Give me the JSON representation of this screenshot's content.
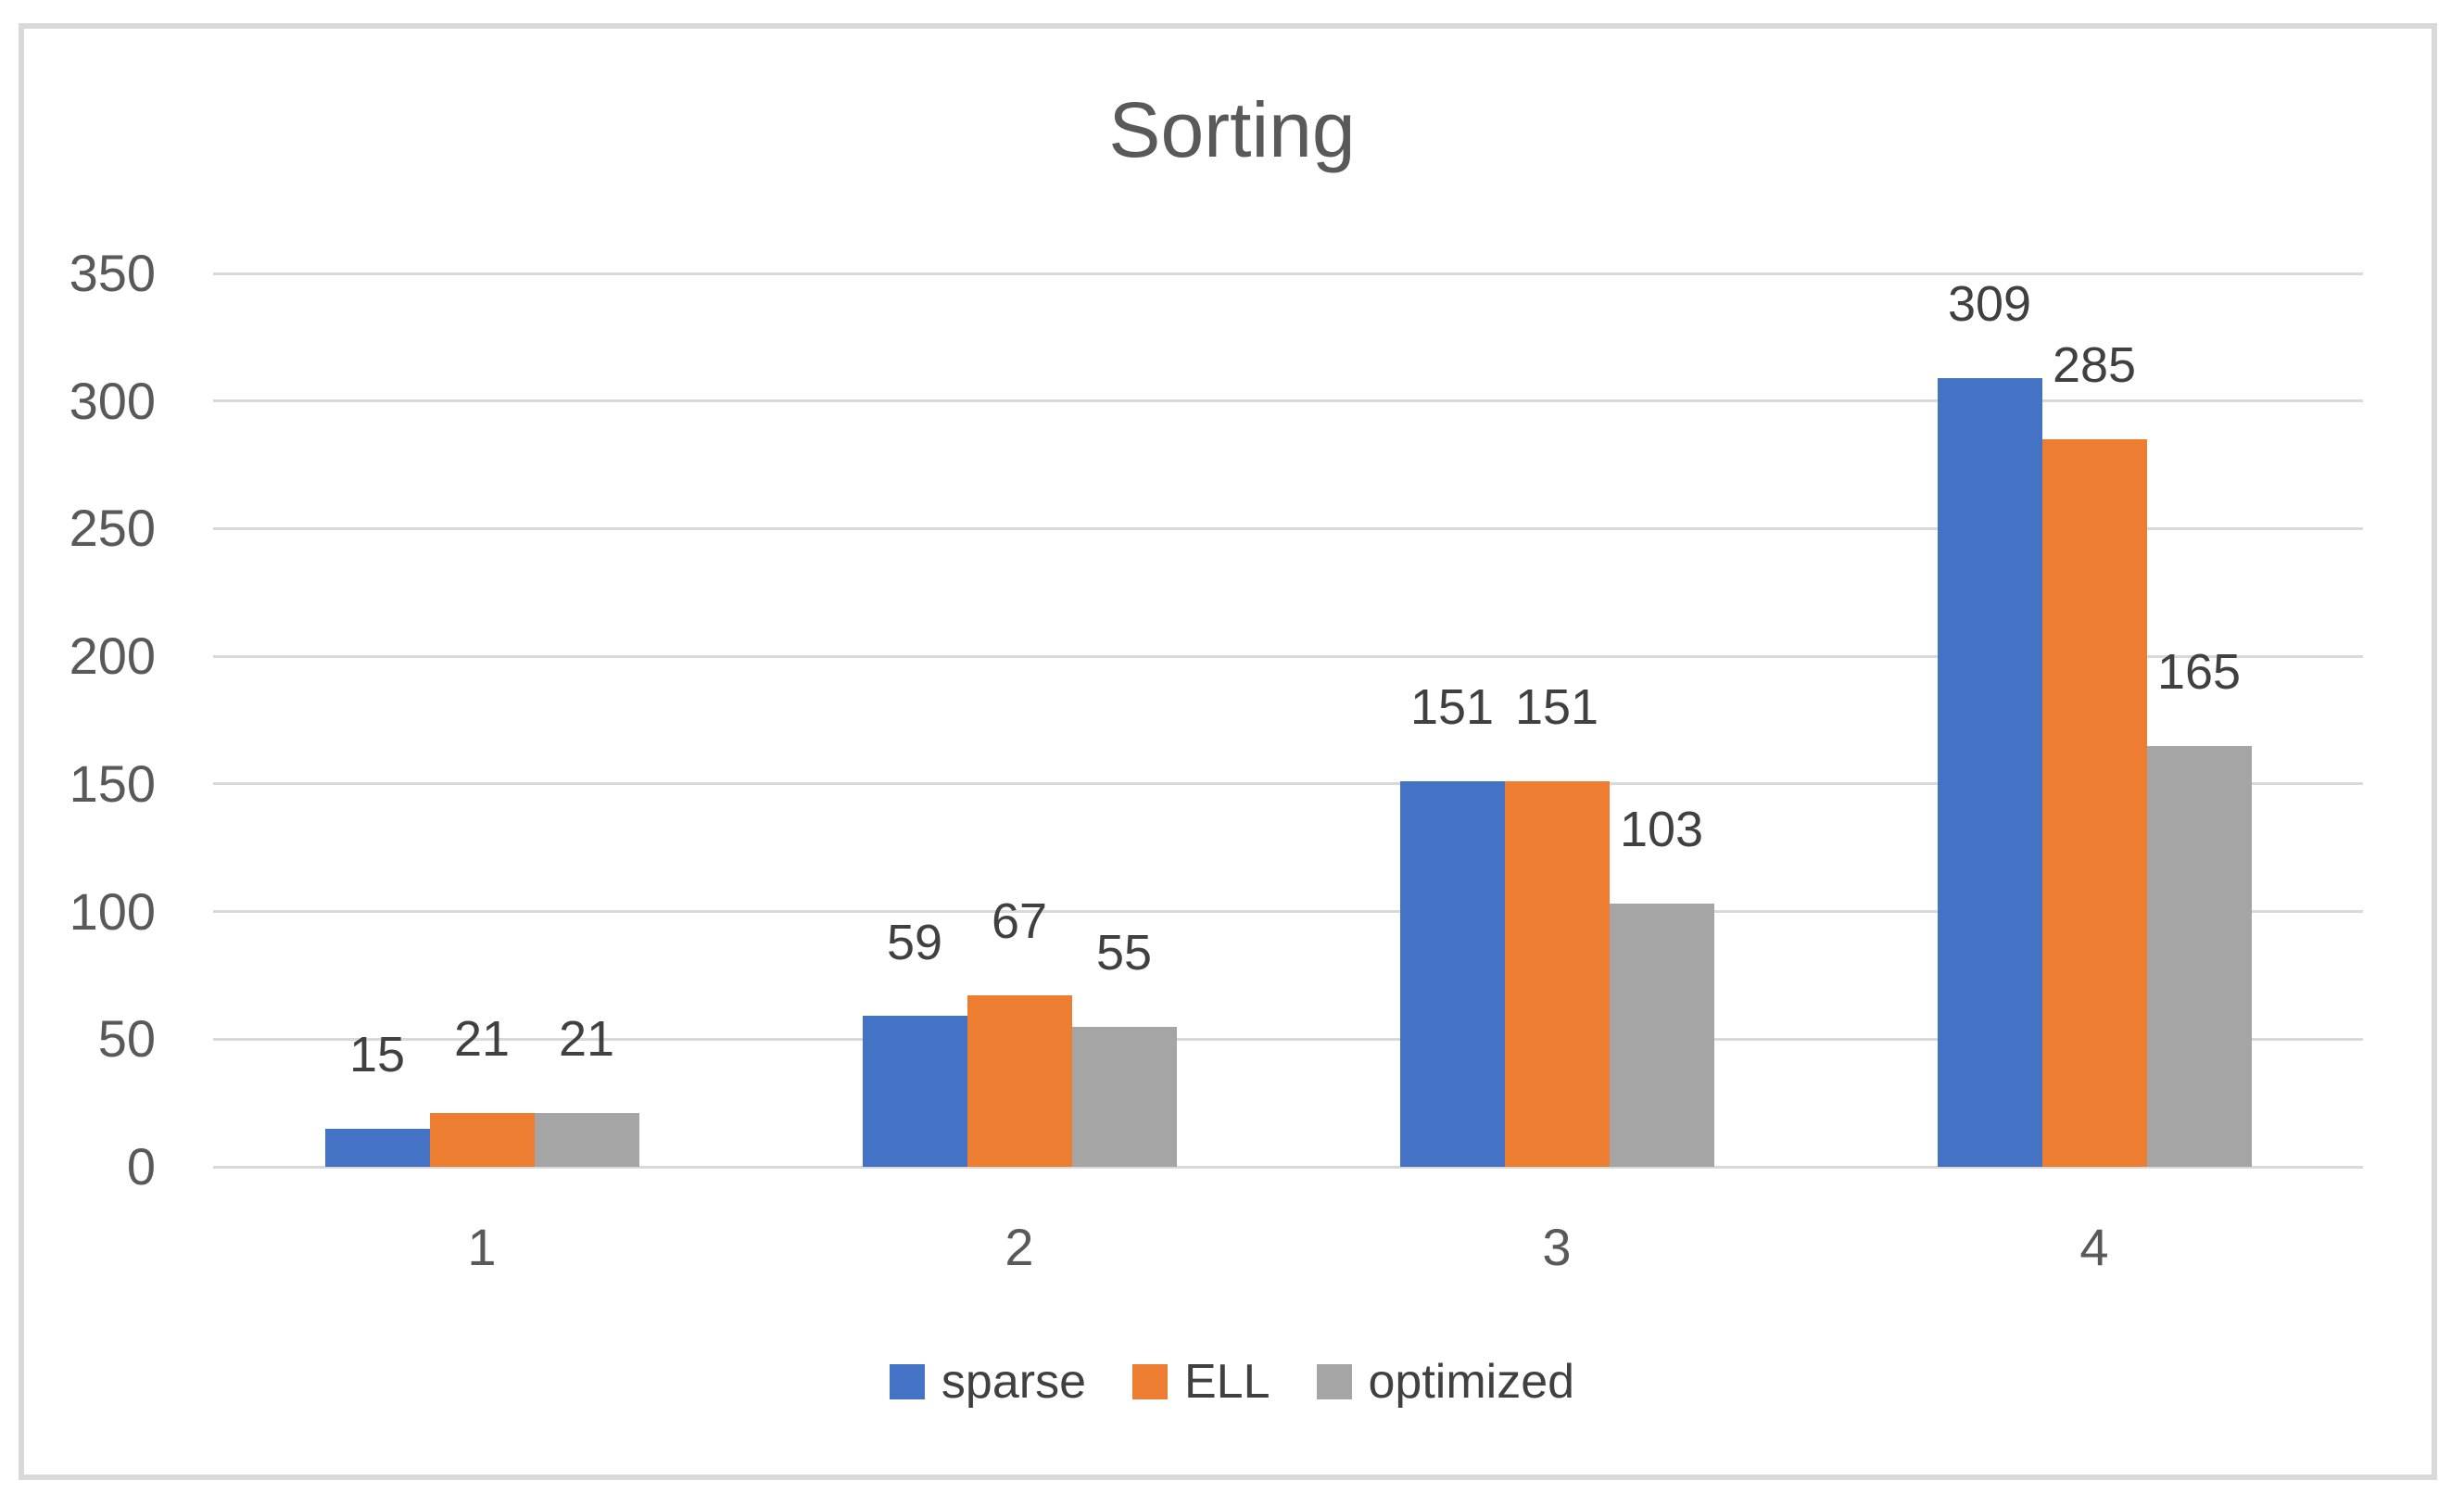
{
  "chart_data": {
    "type": "bar",
    "title": "Sorting",
    "categories": [
      "1",
      "2",
      "3",
      "4"
    ],
    "series": [
      {
        "name": "sparse",
        "color": "#4472C4",
        "values": [
          15,
          59,
          151,
          309
        ]
      },
      {
        "name": "ELL",
        "color": "#ED7D31",
        "values": [
          21,
          67,
          151,
          285
        ]
      },
      {
        "name": "optimized",
        "color": "#A5A5A5",
        "values": [
          21,
          55,
          103,
          165
        ]
      }
    ],
    "ylim": [
      0,
      350
    ],
    "ytick_step": 50,
    "ytick_labels": [
      "0",
      "50",
      "100",
      "150",
      "200",
      "250",
      "300",
      "350"
    ],
    "grid": true,
    "data_labels_visible": true,
    "legend_position": "bottom",
    "legend_items": [
      "sparse",
      "ELL",
      "optimized"
    ]
  },
  "style": {
    "background": "#FFFFFF",
    "border_color": "#D9D9D9",
    "grid_color": "#D9D9D9",
    "axis_line_color": "#D9D9D9",
    "title_color": "#595959",
    "axis_text_color": "#595959",
    "data_label_color": "#404040",
    "legend_text_color": "#404040"
  }
}
